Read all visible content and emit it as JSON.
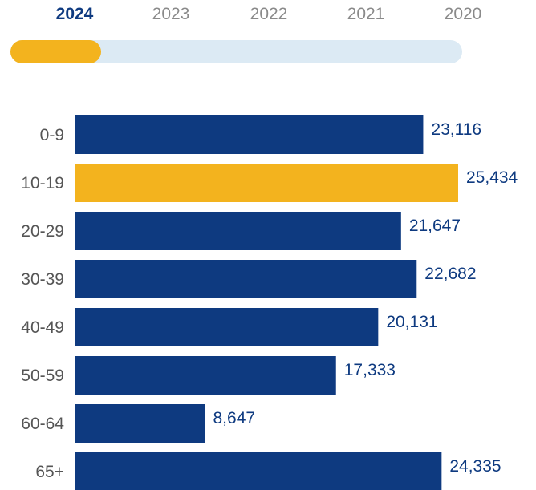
{
  "year_selector": {
    "years": [
      "2024",
      "2023",
      "2022",
      "2021",
      "2020"
    ],
    "selected": "2024",
    "selected_fraction": 0.2
  },
  "colors": {
    "bar": "#0e3a80",
    "highlight_bar": "#f3b31e",
    "value_label": "#0e3a80",
    "category_label": "#555555",
    "tab_active": "#0e3a80",
    "tab_inactive": "#8a8a8a",
    "track": "#dceaf4"
  },
  "chart_data": {
    "type": "bar",
    "orientation": "horizontal",
    "categories": [
      "0-9",
      "10-19",
      "20-29",
      "30-39",
      "40-49",
      "50-59",
      "60-64",
      "65+"
    ],
    "values": [
      23116,
      25434,
      21647,
      22682,
      20131,
      17333,
      8647,
      24335
    ],
    "value_labels": [
      "23,116",
      "25,434",
      "21,647",
      "22,682",
      "20,131",
      "17,333",
      "8,647",
      "24,335"
    ],
    "highlight_index": 1,
    "title": "",
    "xlabel": "",
    "ylabel": "",
    "xlim": [
      0,
      25434
    ],
    "grid": false,
    "legend": "none"
  }
}
